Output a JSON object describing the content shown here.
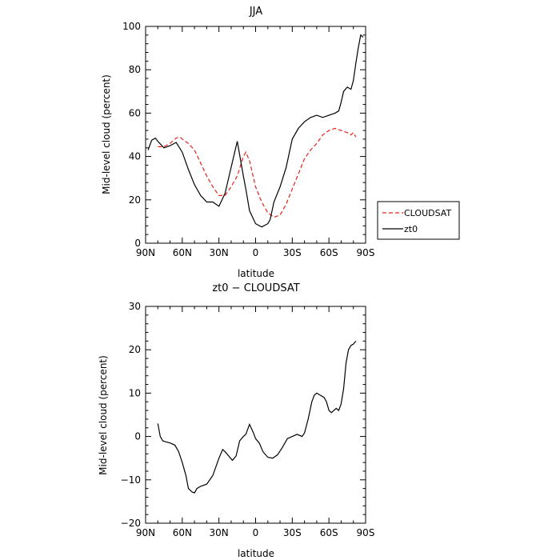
{
  "chart_data": [
    {
      "type": "line",
      "title": "JJA",
      "xlabel": "latitude",
      "ylabel": "Mid-level cloud (percent)",
      "xlim": [
        90,
        -90
      ],
      "ylim": [
        0,
        100
      ],
      "x_ticks": [
        90,
        60,
        30,
        0,
        -30,
        -60,
        -90
      ],
      "x_tick_labels": [
        "90N",
        "60N",
        "30N",
        "0",
        "30S",
        "60S",
        "90S"
      ],
      "y_ticks": [
        0,
        20,
        40,
        60,
        80,
        100
      ],
      "y_tick_labels": [
        "0",
        "20",
        "40",
        "60",
        "80",
        "100"
      ],
      "legend_position": "right",
      "series": [
        {
          "name": "CLOUDSAT",
          "color": "#e8211a",
          "dash": "dashed",
          "x": [
            80,
            75,
            70,
            65,
            62,
            60,
            55,
            50,
            45,
            40,
            35,
            30,
            25,
            20,
            15,
            10,
            8,
            5,
            0,
            -5,
            -10,
            -15,
            -20,
            -25,
            -30,
            -35,
            -40,
            -45,
            -50,
            -55,
            -60,
            -65,
            -70,
            -75,
            -78,
            -80,
            -82
          ],
          "y": [
            44.5,
            44.5,
            46,
            48.5,
            49,
            48,
            46,
            43,
            37,
            31,
            26,
            22,
            22,
            26,
            31,
            40,
            42,
            38,
            26,
            19,
            14,
            12,
            13,
            18,
            25,
            32,
            39,
            43,
            46,
            50,
            52,
            53,
            52,
            51,
            50,
            51,
            49
          ]
        },
        {
          "name": "zt0",
          "color": "#000000",
          "dash": "solid",
          "x": [
            88,
            85,
            82,
            80,
            75,
            70,
            65,
            60,
            55,
            50,
            45,
            40,
            35,
            30,
            25,
            20,
            15,
            10,
            8,
            5,
            0,
            -5,
            -10,
            -12,
            -15,
            -20,
            -25,
            -30,
            -35,
            -40,
            -45,
            -50,
            -55,
            -60,
            -65,
            -68,
            -70,
            -72,
            -75,
            -78,
            -80,
            -82,
            -84,
            -86,
            -88
          ],
          "y": [
            43,
            47.5,
            48.5,
            47,
            44,
            45,
            46.5,
            42,
            34,
            27,
            22,
            19,
            19,
            17,
            23,
            35,
            47,
            31,
            25,
            15,
            9,
            7.5,
            9,
            11,
            19,
            26,
            35,
            48,
            53,
            56,
            58,
            59,
            58,
            59,
            60,
            61,
            65,
            70,
            72,
            71,
            75,
            83,
            90,
            96,
            95
          ]
        }
      ]
    },
    {
      "type": "line",
      "title": "zt0 − CLOUDSAT",
      "xlabel": "latitude",
      "ylabel": "Mid-level cloud (percent)",
      "xlim": [
        90,
        -90
      ],
      "ylim": [
        -20,
        30
      ],
      "x_ticks": [
        90,
        60,
        30,
        0,
        -30,
        -60,
        -90
      ],
      "x_tick_labels": [
        "90N",
        "60N",
        "30N",
        "0",
        "30S",
        "60S",
        "90S"
      ],
      "y_ticks": [
        -20,
        -10,
        0,
        10,
        20,
        30
      ],
      "y_tick_labels": [
        "−20",
        "−10",
        "0",
        "10",
        "20",
        "30"
      ],
      "series": [
        {
          "color": "#000000",
          "dash": "solid",
          "x": [
            80,
            78,
            76,
            74,
            70,
            66,
            63,
            60,
            57,
            55,
            52,
            50,
            48,
            45,
            40,
            35,
            30,
            27,
            25,
            22,
            19,
            16,
            13,
            10,
            8,
            5,
            2,
            0,
            -3,
            -6,
            -10,
            -14,
            -18,
            -22,
            -26,
            -30,
            -34,
            -38,
            -40,
            -43,
            -46,
            -48,
            -50,
            -53,
            -56,
            -58,
            -60,
            -62,
            -64,
            -66,
            -68,
            -70,
            -72,
            -74,
            -76,
            -78,
            -80,
            -82
          ],
          "y": [
            3,
            0,
            -1,
            -1.2,
            -1.5,
            -2,
            -3.5,
            -6,
            -9,
            -12,
            -12.8,
            -13,
            -12,
            -11.5,
            -11,
            -9,
            -5,
            -3,
            -3.5,
            -4.5,
            -5.5,
            -4.5,
            -1,
            0,
            0.5,
            2.8,
            1,
            -0.5,
            -1.5,
            -3.5,
            -4.8,
            -5,
            -4.2,
            -2.5,
            -0.5,
            0,
            0.5,
            0,
            0.8,
            4,
            8,
            9.5,
            10,
            9.5,
            9,
            8,
            6,
            5.5,
            6,
            6.5,
            6,
            7.5,
            11,
            17,
            20,
            21,
            21.3,
            22
          ]
        }
      ]
    }
  ],
  "legend": {
    "items": [
      {
        "label": "CLOUDSAT"
      },
      {
        "label": "zt0"
      }
    ]
  }
}
